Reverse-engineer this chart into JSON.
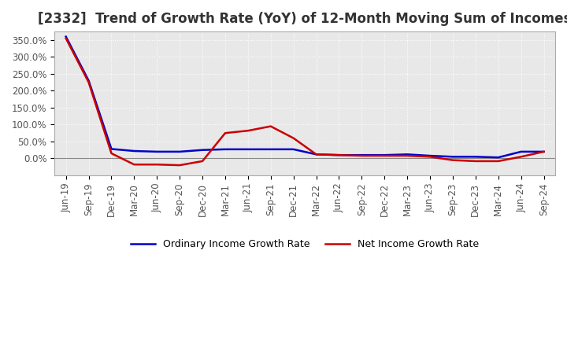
{
  "title": "[2332]  Trend of Growth Rate (YoY) of 12-Month Moving Sum of Incomes",
  "title_fontsize": 12,
  "title_color": "#333333",
  "background_color": "#ffffff",
  "plot_bg_color": "#e8e8e8",
  "grid_color": "#ffffff",
  "ylim": [
    -50,
    375
  ],
  "yticks": [
    0,
    50,
    100,
    150,
    200,
    250,
    300,
    350
  ],
  "ytick_labels": [
    "0.0%",
    "50.0%",
    "100.0%",
    "150.0%",
    "200.0%",
    "250.0%",
    "300.0%",
    "350.0%"
  ],
  "x_labels": [
    "Jun-19",
    "Sep-19",
    "Dec-19",
    "Mar-20",
    "Jun-20",
    "Sep-20",
    "Dec-20",
    "Mar-21",
    "Jun-21",
    "Sep-21",
    "Dec-21",
    "Mar-22",
    "Jun-22",
    "Sep-22",
    "Dec-22",
    "Mar-23",
    "Jun-23",
    "Sep-23",
    "Dec-23",
    "Mar-24",
    "Jun-24",
    "Sep-24"
  ],
  "ordinary_income": [
    360,
    230,
    28,
    22,
    20,
    20,
    25,
    27,
    27,
    27,
    27,
    12,
    10,
    10,
    10,
    12,
    8,
    5,
    5,
    3,
    20,
    20
  ],
  "net_income": [
    355,
    225,
    15,
    -18,
    -18,
    -20,
    -8,
    75,
    82,
    95,
    60,
    12,
    10,
    8,
    8,
    8,
    5,
    -5,
    -8,
    -8,
    5,
    20
  ],
  "ordinary_color": "#0000cc",
  "net_color": "#cc0000",
  "line_width": 1.8,
  "legend_labels": [
    "Ordinary Income Growth Rate",
    "Net Income Growth Rate"
  ],
  "tick_fontsize": 8.5,
  "tick_color": "#555555",
  "legend_fontsize": 9
}
